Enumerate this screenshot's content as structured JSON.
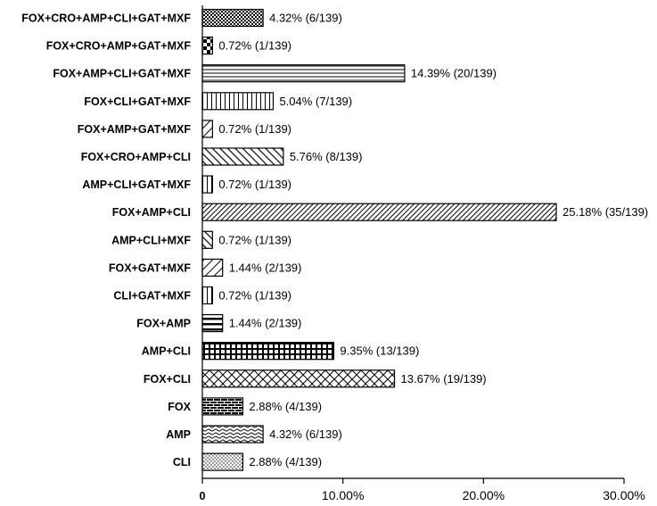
{
  "chart_data": {
    "type": "bar",
    "orientation": "horizontal",
    "categories": [
      "FOX+CRO+AMP+CLI+GAT+MXF",
      "FOX+CRO+AMP+GAT+MXF",
      "FOX+AMP+CLI+GAT+MXF",
      "FOX+CLI+GAT+MXF",
      "FOX+AMP+GAT+MXF",
      "FOX+CRO+AMP+CLI",
      "AMP+CLI+GAT+MXF",
      "FOX+AMP+CLI",
      "AMP+CLI+MXF",
      "FOX+GAT+MXF",
      "CLI+GAT+MXF",
      "FOX+AMP",
      "AMP+CLI",
      "FOX+CLI",
      "FOX",
      "AMP",
      "CLI"
    ],
    "values": [
      4.32,
      0.72,
      14.39,
      5.04,
      0.72,
      5.76,
      0.72,
      25.18,
      0.72,
      1.44,
      0.72,
      1.44,
      9.35,
      13.67,
      2.88,
      4.32,
      2.88
    ],
    "data_labels": [
      "4.32% (6/139)",
      "0.72% (1/139)",
      "14.39% (20/139)",
      "5.04% (7/139)",
      "0.72% (1/139)",
      "5.76% (8/139)",
      "0.72% (1/139)",
      "25.18% (35/139)",
      "0.72% (1/139)",
      "1.44% (2/139)",
      "0.72% (1/139)",
      "1.44% (2/139)",
      "9.35% (13/139)",
      "13.67% (19/139)",
      "2.88% (4/139)",
      "4.32% (6/139)",
      "2.88% (4/139)"
    ],
    "patterns": [
      "checker-fine",
      "checker-large",
      "horizontal-lines",
      "vertical-lines",
      "diagonal-right",
      "diagonal-left",
      "vertical-lines",
      "diagonal-right-dense",
      "diagonal-left",
      "diagonal-right",
      "vertical-lines",
      "horizontal-thick",
      "grid-thick",
      "diagonal-cross",
      "brick",
      "wave",
      "dots"
    ],
    "xlim": [
      0,
      30
    ],
    "xticks": [
      {
        "value": 0,
        "label": "0"
      },
      {
        "value": 10,
        "label": "10.00%"
      },
      {
        "value": 20,
        "label": "20.00%"
      },
      {
        "value": 30,
        "label": "30.00%"
      }
    ],
    "title": "",
    "xlabel": "",
    "ylabel": "",
    "grid": false,
    "legend": "none",
    "colors": {
      "bar_stroke": "#000000",
      "pattern_ink": "#000000",
      "background": "#ffffff"
    }
  }
}
